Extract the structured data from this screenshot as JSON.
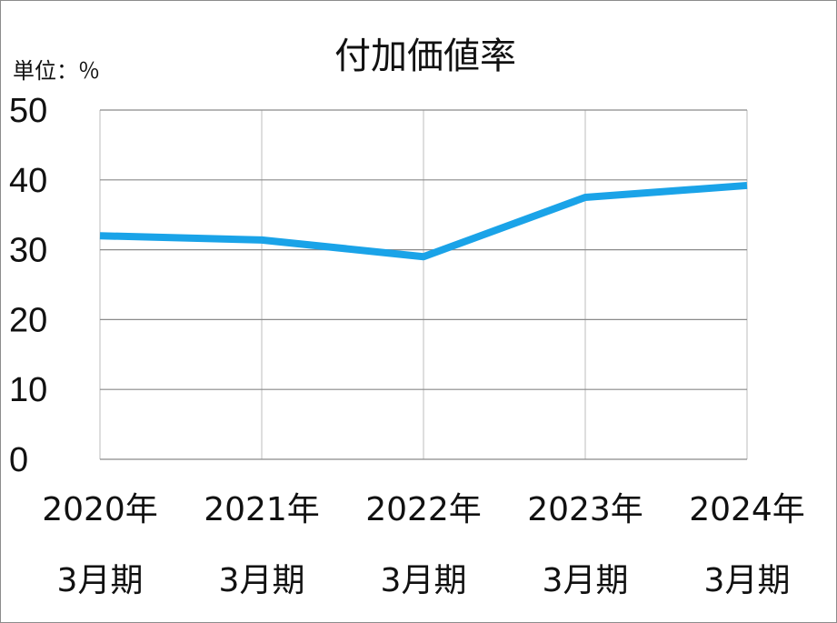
{
  "chart_data": {
    "type": "line",
    "title": "付加価値率",
    "unit_label": "単位：％",
    "categories": [
      [
        "2020年",
        "3月期"
      ],
      [
        "2021年",
        "3月期"
      ],
      [
        "2022年",
        "3月期"
      ],
      [
        "2023年",
        "3月期"
      ],
      [
        "2024年",
        "3月期"
      ]
    ],
    "series": [
      {
        "values": [
          32.0,
          31.4,
          29.0,
          37.5,
          39.2
        ]
      }
    ],
    "ylim": [
      0,
      50
    ],
    "yticks": [
      "0",
      "10",
      "20",
      "30",
      "40",
      "50"
    ],
    "grid": true,
    "line_color": "#1aa3e8"
  }
}
